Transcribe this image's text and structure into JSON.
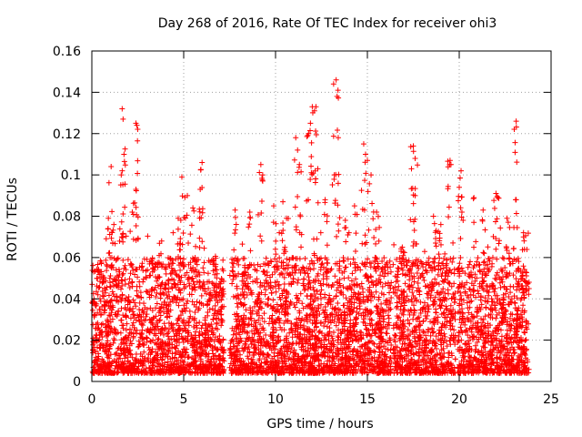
{
  "chart_data": {
    "type": "scatter",
    "title": "Day 268 of 2016, Rate Of TEC Index for receiver ohi3",
    "xlabel": "GPS time / hours",
    "ylabel": "ROTI / TECUs",
    "xlim": [
      0,
      25
    ],
    "ylim": [
      0,
      0.16
    ],
    "x_ticks": [
      0,
      5,
      10,
      15,
      20,
      25
    ],
    "x_tick_labels": [
      "0",
      "5",
      "10",
      "15",
      "20",
      "25"
    ],
    "y_ticks": [
      0,
      0.02,
      0.04,
      0.06,
      0.08,
      0.1,
      0.12,
      0.14,
      0.16
    ],
    "y_tick_labels": [
      "0",
      "0.02",
      "0.04",
      "0.06",
      "0.08",
      "0.1",
      "0.12",
      "0.14",
      "0.16"
    ],
    "grid": true,
    "marker": "+",
    "series": [
      {
        "name": "ROTI",
        "color": "#ff0000",
        "x_range": [
          0.0,
          23.8
        ],
        "bulk_range": [
          0.004,
          0.06
        ],
        "gap_hours": [
          [
            7.2,
            7.5
          ],
          [
            16.3,
            16.4
          ],
          [
            19.8,
            19.9
          ]
        ],
        "peaks": [
          {
            "x": 1.05,
            "y": 0.104
          },
          {
            "x": 1.65,
            "y": 0.132
          },
          {
            "x": 1.7,
            "y": 0.127
          },
          {
            "x": 1.75,
            "y": 0.11
          },
          {
            "x": 1.6,
            "y": 0.1
          },
          {
            "x": 2.4,
            "y": 0.125
          },
          {
            "x": 2.45,
            "y": 0.124
          },
          {
            "x": 2.4,
            "y": 0.093
          },
          {
            "x": 4.9,
            "y": 0.099
          },
          {
            "x": 5.2,
            "y": 0.09
          },
          {
            "x": 5.5,
            "y": 0.084
          },
          {
            "x": 6.0,
            "y": 0.106
          },
          {
            "x": 5.9,
            "y": 0.093
          },
          {
            "x": 9.2,
            "y": 0.105
          },
          {
            "x": 9.3,
            "y": 0.1
          },
          {
            "x": 10.4,
            "y": 0.087
          },
          {
            "x": 11.1,
            "y": 0.118
          },
          {
            "x": 11.2,
            "y": 0.112
          },
          {
            "x": 11.3,
            "y": 0.105
          },
          {
            "x": 11.8,
            "y": 0.12
          },
          {
            "x": 12.0,
            "y": 0.133
          },
          {
            "x": 12.2,
            "y": 0.133
          },
          {
            "x": 11.9,
            "y": 0.125
          },
          {
            "x": 12.3,
            "y": 0.103
          },
          {
            "x": 13.3,
            "y": 0.146
          },
          {
            "x": 13.4,
            "y": 0.141
          },
          {
            "x": 13.35,
            "y": 0.138
          },
          {
            "x": 13.2,
            "y": 0.1
          },
          {
            "x": 14.8,
            "y": 0.115
          },
          {
            "x": 14.9,
            "y": 0.11
          },
          {
            "x": 15.0,
            "y": 0.107
          },
          {
            "x": 15.2,
            "y": 0.1
          },
          {
            "x": 17.5,
            "y": 0.114
          },
          {
            "x": 17.6,
            "y": 0.108
          },
          {
            "x": 17.4,
            "y": 0.103
          },
          {
            "x": 17.6,
            "y": 0.09
          },
          {
            "x": 19.5,
            "y": 0.107
          },
          {
            "x": 19.55,
            "y": 0.105
          },
          {
            "x": 20.1,
            "y": 0.102
          },
          {
            "x": 20.0,
            "y": 0.094
          },
          {
            "x": 20.8,
            "y": 0.089
          },
          {
            "x": 22.0,
            "y": 0.091
          },
          {
            "x": 22.1,
            "y": 0.089
          },
          {
            "x": 23.1,
            "y": 0.126
          },
          {
            "x": 23.1,
            "y": 0.088
          },
          {
            "x": 0.9,
            "y": 0.079
          },
          {
            "x": 1.2,
            "y": 0.076
          },
          {
            "x": 2.2,
            "y": 0.082
          },
          {
            "x": 3.8,
            "y": 0.068
          },
          {
            "x": 4.7,
            "y": 0.079
          },
          {
            "x": 7.8,
            "y": 0.083
          },
          {
            "x": 8.6,
            "y": 0.082
          },
          {
            "x": 9.9,
            "y": 0.085
          },
          {
            "x": 10.6,
            "y": 0.079
          },
          {
            "x": 12.7,
            "y": 0.088
          },
          {
            "x": 13.8,
            "y": 0.078
          },
          {
            "x": 14.3,
            "y": 0.085
          },
          {
            "x": 15.5,
            "y": 0.082
          },
          {
            "x": 16.9,
            "y": 0.065
          },
          {
            "x": 18.6,
            "y": 0.08
          },
          {
            "x": 19.0,
            "y": 0.076
          },
          {
            "x": 21.3,
            "y": 0.083
          },
          {
            "x": 22.6,
            "y": 0.079
          },
          {
            "x": 23.5,
            "y": 0.072
          }
        ]
      }
    ]
  }
}
